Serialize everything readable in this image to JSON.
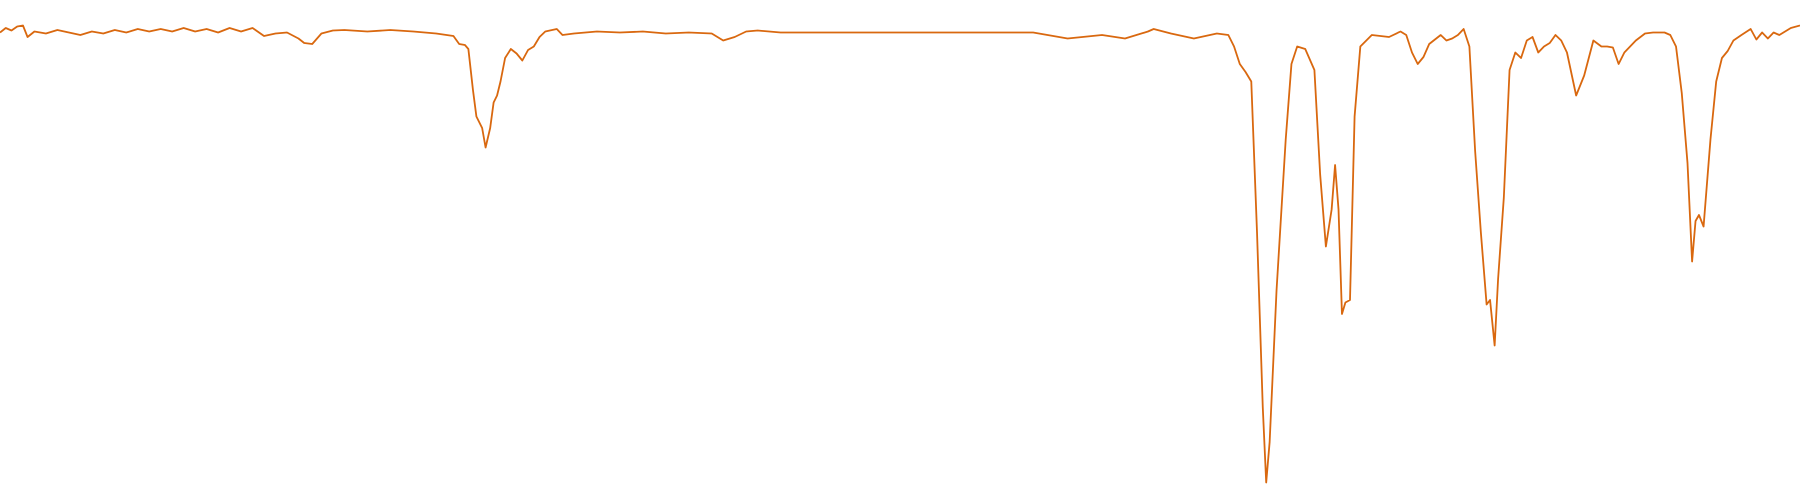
{
  "chart_data": {
    "type": "line",
    "color": "#d9680f",
    "xlim": [
      0,
      1568
    ],
    "ylim": [
      0,
      100
    ],
    "x": [
      0,
      5,
      10,
      15,
      20,
      24,
      30,
      40,
      50,
      60,
      70,
      80,
      90,
      100,
      110,
      120,
      130,
      140,
      150,
      160,
      170,
      180,
      190,
      200,
      210,
      220,
      230,
      240,
      250,
      260,
      265,
      272,
      280,
      290,
      300,
      320,
      340,
      360,
      380,
      395,
      400,
      405,
      408,
      412,
      415,
      420,
      423,
      427,
      430,
      433,
      436,
      440,
      445,
      450,
      455,
      460,
      465,
      470,
      475,
      485,
      490,
      500,
      520,
      540,
      560,
      580,
      600,
      620,
      630,
      640,
      650,
      660,
      680,
      700,
      750,
      800,
      850,
      900,
      930,
      960,
      980,
      1000,
      1005,
      1020,
      1040,
      1060,
      1070,
      1075,
      1080,
      1085,
      1090,
      1095,
      1100,
      1103,
      1106,
      1112,
      1120,
      1125,
      1130,
      1137,
      1145,
      1150,
      1155,
      1160,
      1163,
      1166,
      1169,
      1172,
      1176,
      1180,
      1185,
      1195,
      1210,
      1220,
      1225,
      1230,
      1235,
      1240,
      1245,
      1250,
      1255,
      1260,
      1265,
      1270,
      1275,
      1280,
      1285,
      1290,
      1295,
      1298,
      1302,
      1305,
      1310,
      1315,
      1320,
      1325,
      1330,
      1335,
      1340,
      1345,
      1350,
      1355,
      1360,
      1365,
      1373,
      1380,
      1388,
      1395,
      1400,
      1405,
      1410,
      1415,
      1425,
      1433,
      1440,
      1450,
      1455,
      1460,
      1465,
      1470,
      1474,
      1477,
      1480,
      1484,
      1490,
      1495,
      1500,
      1505,
      1510,
      1517,
      1525,
      1530,
      1535,
      1540,
      1545,
      1550,
      1555,
      1560,
      1568
    ],
    "values": [
      93.5,
      94.4,
      93.9,
      94.7,
      94.9,
      92.6,
      93.7,
      93.3,
      94.0,
      93.5,
      93.0,
      93.7,
      93.3,
      94.0,
      93.5,
      94.2,
      93.7,
      94.2,
      93.7,
      94.4,
      93.7,
      94.2,
      93.5,
      94.4,
      93.7,
      94.4,
      92.8,
      93.3,
      93.5,
      92.3,
      91.4,
      91.2,
      93.3,
      93.9,
      94.0,
      93.7,
      94.0,
      93.7,
      93.3,
      92.8,
      91.2,
      91.0,
      90.2,
      82.0,
      76.7,
      74.4,
      70.5,
      74.4,
      79.5,
      80.9,
      83.7,
      88.4,
      90.2,
      89.3,
      87.9,
      90.0,
      90.7,
      92.6,
      93.7,
      94.2,
      93.0,
      93.3,
      93.7,
      93.5,
      93.7,
      93.3,
      93.5,
      93.3,
      91.9,
      92.6,
      93.7,
      93.9,
      93.5,
      93.5,
      93.5,
      93.5,
      93.5,
      93.5,
      92.3,
      93.0,
      92.3,
      93.7,
      94.2,
      93.3,
      92.3,
      93.3,
      93.0,
      90.7,
      87.2,
      85.6,
      83.7,
      53.5,
      18.6,
      3.5,
      11.6,
      41.9,
      72.1,
      87.2,
      90.7,
      90.2,
      86.0,
      65.1,
      50.7,
      58.1,
      67.0,
      58.1,
      37.2,
      39.5,
      40.0,
      76.7,
      90.7,
      93.0,
      92.6,
      93.7,
      93.0,
      89.5,
      87.2,
      88.6,
      91.2,
      92.1,
      93.0,
      91.9,
      92.3,
      93.0,
      94.2,
      90.7,
      69.8,
      53.5,
      39.1,
      40.0,
      30.9,
      44.2,
      60.5,
      86.0,
      89.5,
      88.4,
      91.9,
      92.6,
      89.5,
      90.7,
      91.4,
      93.0,
      91.9,
      89.5,
      80.9,
      84.9,
      91.9,
      90.7,
      90.7,
      90.5,
      87.2,
      89.5,
      91.9,
      93.3,
      93.5,
      93.5,
      93.0,
      90.7,
      81.4,
      67.4,
      47.7,
      55.8,
      57.0,
      54.7,
      72.1,
      83.7,
      88.4,
      89.8,
      91.9,
      93.0,
      94.2,
      92.1,
      93.5,
      92.3,
      93.5,
      93.0,
      93.7,
      94.4,
      94.9
    ]
  }
}
